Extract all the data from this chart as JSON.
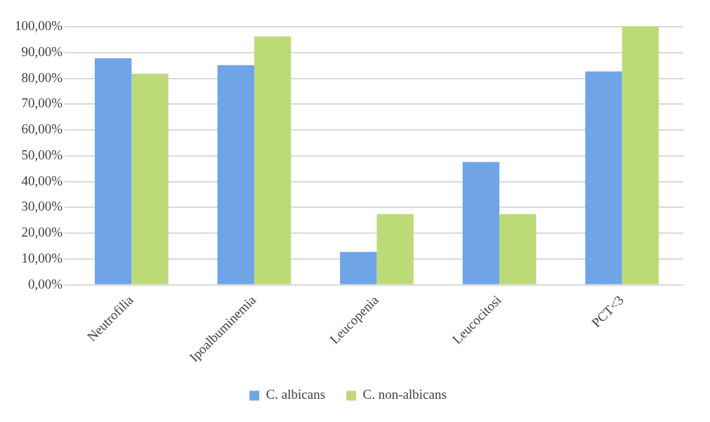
{
  "chart_data": {
    "type": "bar",
    "categories": [
      "Neutrofilia",
      "Ipoalbuminemia",
      "Leucopenia",
      "Leucocitosi",
      "PCT<3"
    ],
    "series": [
      {
        "name": "C. albicans",
        "color": "#6fa5e6",
        "values": [
          87.8,
          85.1,
          12.8,
          47.6,
          82.7
        ]
      },
      {
        "name": "C. non-albicans",
        "color": "#bcdb78",
        "values": [
          81.8,
          96.2,
          27.4,
          27.4,
          100
        ]
      }
    ],
    "ylim": [
      0,
      100
    ],
    "yticks": [
      {
        "value": 0,
        "label": "0,00%"
      },
      {
        "value": 10,
        "label": "10,00%"
      },
      {
        "value": 20,
        "label": "20,00%"
      },
      {
        "value": 30,
        "label": "30,00%"
      },
      {
        "value": 40,
        "label": "40,00%"
      },
      {
        "value": 50,
        "label": "50,00%"
      },
      {
        "value": 60,
        "label": "60,00%"
      },
      {
        "value": 70,
        "label": "70,00%"
      },
      {
        "value": 80,
        "label": "80,00%"
      },
      {
        "value": 90,
        "label": "90,00%"
      },
      {
        "value": 100,
        "label": "100,00%"
      }
    ],
    "grid": "y",
    "legend": "bottom"
  }
}
